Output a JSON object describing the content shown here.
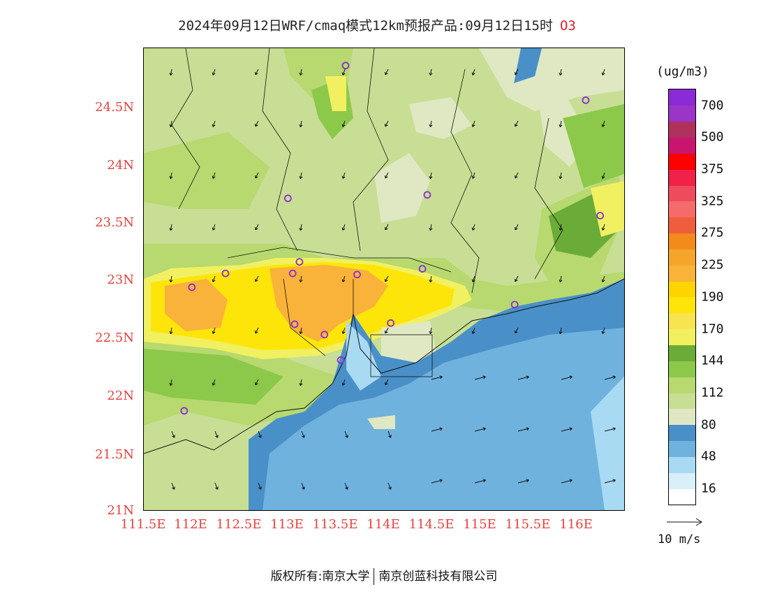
{
  "title": {
    "main": "2024年09月12日WRF/cmaq模式12km预报产品:09月12日15时",
    "pollutant": "O3"
  },
  "axes": {
    "y_ticks": [
      "24.5N",
      "24N",
      "23.5N",
      "23N",
      "22.5N",
      "22N",
      "21.5N",
      "21N"
    ],
    "x_ticks": [
      "111.5E",
      "112E",
      "112.5E",
      "113E",
      "113.5E",
      "114E",
      "114.5E",
      "115E",
      "115.5E",
      "116E"
    ]
  },
  "legend": {
    "units": "(ug/m3)",
    "levels": [
      {
        "color": "#ffffff",
        "label": "16"
      },
      {
        "color": "#d9eff9",
        "label": ""
      },
      {
        "color": "#a9daf3",
        "label": "48"
      },
      {
        "color": "#6fb2de",
        "label": ""
      },
      {
        "color": "#4a90c8",
        "label": "80"
      },
      {
        "color": "#dfe8c2",
        "label": ""
      },
      {
        "color": "#c8de94",
        "label": "112"
      },
      {
        "color": "#b7d96f",
        "label": ""
      },
      {
        "color": "#8cc94a",
        "label": "144"
      },
      {
        "color": "#6aac37",
        "label": ""
      },
      {
        "color": "#f1f061",
        "label": "170"
      },
      {
        "color": "#f7e44e",
        "label": ""
      },
      {
        "color": "#fde50a",
        "label": "190"
      },
      {
        "color": "#fdd300",
        "label": ""
      },
      {
        "color": "#f9b23a",
        "label": "225"
      },
      {
        "color": "#f6a52b",
        "label": ""
      },
      {
        "color": "#f38b1a",
        "label": "275"
      },
      {
        "color": "#ef5d3c",
        "label": ""
      },
      {
        "color": "#f56a6a",
        "label": "325"
      },
      {
        "color": "#ee4b5c",
        "label": ""
      },
      {
        "color": "#f0224a",
        "label": "375"
      },
      {
        "color": "#ff0000",
        "label": ""
      },
      {
        "color": "#c8166e",
        "label": "500"
      },
      {
        "color": "#b0305e",
        "label": ""
      },
      {
        "color": "#9b35c7",
        "label": "700"
      },
      {
        "color": "#8a2bd6",
        "label": ""
      }
    ]
  },
  "wind_scale": {
    "label": "10 m/s"
  },
  "footer": {
    "left": "版权所有:南京大学",
    "right": "南京创蓝科技有限公司"
  },
  "stations": [
    {
      "lon": 113.6,
      "lat": 24.85
    },
    {
      "lon": 116.1,
      "lat": 24.55
    },
    {
      "lon": 113.0,
      "lat": 23.7
    },
    {
      "lon": 114.45,
      "lat": 23.73
    },
    {
      "lon": 116.25,
      "lat": 23.55
    },
    {
      "lon": 112.35,
      "lat": 23.05
    },
    {
      "lon": 113.05,
      "lat": 23.05
    },
    {
      "lon": 113.12,
      "lat": 23.15
    },
    {
      "lon": 113.72,
      "lat": 23.04
    },
    {
      "lon": 114.4,
      "lat": 23.09
    },
    {
      "lon": 112.0,
      "lat": 22.93
    },
    {
      "lon": 115.36,
      "lat": 22.78
    },
    {
      "lon": 113.07,
      "lat": 22.61
    },
    {
      "lon": 114.07,
      "lat": 22.62
    },
    {
      "lon": 113.38,
      "lat": 22.52
    },
    {
      "lon": 113.55,
      "lat": 22.3
    },
    {
      "lon": 111.92,
      "lat": 21.86
    }
  ]
}
